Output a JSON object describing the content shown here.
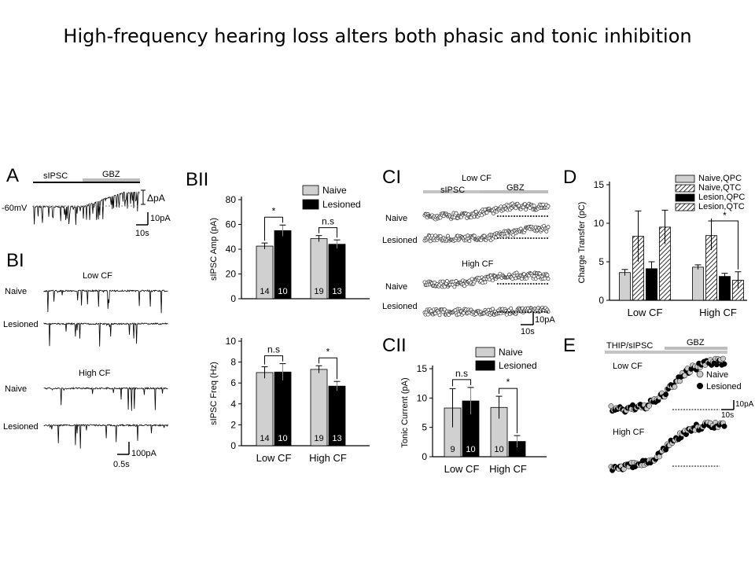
{
  "title": "High-frequency hearing loss alters both phasic and tonic inhibition",
  "panel_labels": {
    "A": "A",
    "BI": "BI",
    "BII": "BII",
    "CI": "CI",
    "CII": "CII",
    "D": "D",
    "E": "E"
  },
  "panel_A": {
    "sipsc": "sIPSC",
    "gbz": "GBZ",
    "vhold": "-60mV",
    "delta": "ΔpA",
    "scale_y": "10pA",
    "scale_x": "10s"
  },
  "panel_BI": {
    "low_cf": "Low CF",
    "high_cf": "High CF",
    "naive": "Naive",
    "lesioned": "Lesioned",
    "scale_y": "100pA",
    "scale_x": "0.5s"
  },
  "panel_CI": {
    "low_cf": "Low CF",
    "high_cf": "High CF",
    "sipsc": "sIPSC",
    "gbz": "GBZ",
    "naive": "Naive",
    "lesioned": "Lesioned",
    "scale_y": "10pA",
    "scale_x": "10s"
  },
  "panel_E": {
    "thip": "THIP/sIPSC",
    "gbz": "GBZ",
    "low_cf": "Low CF",
    "high_cf": "High CF",
    "naive": "Naive",
    "lesioned": "Lesioned",
    "scale_y": "10pA",
    "scale_x": "10s"
  },
  "colors": {
    "naive": "#d0d0d0",
    "lesioned": "#000000",
    "bar_gray": "#c8c8c8"
  },
  "chart_data": [
    {
      "id": "BII_amp",
      "type": "bar",
      "categories": [
        "Low CF",
        "High CF"
      ],
      "series": [
        {
          "name": "Naive",
          "values": [
            42.5,
            48.5
          ],
          "err": [
            2.5,
            2.5
          ],
          "n": [
            "14",
            "19"
          ]
        },
        {
          "name": "Lesioned",
          "values": [
            55,
            44
          ],
          "err": [
            4.5,
            3.5
          ],
          "n": [
            "10",
            "13"
          ]
        }
      ],
      "ylabel": "sIPSC Amp (pA)",
      "ylim": [
        0,
        80
      ],
      "yticks": [
        0,
        20,
        40,
        60,
        80
      ],
      "sig": [
        "*",
        "n.s"
      ],
      "legend": "top-right",
      "show_xlabels": false
    },
    {
      "id": "BII_freq",
      "type": "bar",
      "categories": [
        "Low CF",
        "High CF"
      ],
      "series": [
        {
          "name": "Naive",
          "values": [
            7.0,
            7.3
          ],
          "err": [
            0.55,
            0.35
          ],
          "n": [
            "14",
            "19"
          ]
        },
        {
          "name": "Lesioned",
          "values": [
            7.05,
            5.7
          ],
          "err": [
            0.8,
            0.45
          ],
          "n": [
            "10",
            "13"
          ]
        }
      ],
      "ylabel": "sIPSC Freq (Hz)",
      "ylim": [
        0,
        10
      ],
      "yticks": [
        0,
        2,
        4,
        6,
        8,
        10
      ],
      "sig": [
        "n.s",
        "*"
      ],
      "legend": "none",
      "show_xlabels": true
    },
    {
      "id": "CII",
      "type": "bar",
      "categories": [
        "Low CF",
        "High CF"
      ],
      "series": [
        {
          "name": "Naive",
          "values": [
            8.3,
            8.4
          ],
          "err": [
            3.3,
            1.9
          ],
          "n": [
            "9",
            "10"
          ]
        },
        {
          "name": "Lesioned",
          "values": [
            9.5,
            2.6
          ],
          "err": [
            2.3,
            1.0
          ],
          "n": [
            "10",
            ""
          ]
        }
      ],
      "ylabel": "Tonic Current (pA)",
      "ylim": [
        0,
        15
      ],
      "yticks": [
        0,
        5,
        10,
        15
      ],
      "sig": [
        "n.s",
        "*"
      ],
      "legend": "top-right",
      "show_xlabels": true
    },
    {
      "id": "D",
      "type": "bar",
      "categories": [
        "Low CF",
        "High CF"
      ],
      "series": [
        {
          "name": "Naive,QPC",
          "values": [
            3.6,
            4.3
          ],
          "err": [
            0.4,
            0.3
          ],
          "hatch": false,
          "fill": "#d0d0d0"
        },
        {
          "name": "Naive,QTC",
          "values": [
            8.3,
            8.4
          ],
          "err": [
            3.3,
            1.9
          ],
          "hatch": true,
          "fill": "#ffffff"
        },
        {
          "name": "Lesion,QPC",
          "values": [
            4.1,
            3.1
          ],
          "err": [
            0.9,
            0.4
          ],
          "hatch": false,
          "fill": "#000000"
        },
        {
          "name": "Lesion,QTC",
          "values": [
            9.5,
            2.6
          ],
          "err": [
            2.2,
            1.1
          ],
          "hatch": true,
          "fill": "#ffffff"
        }
      ],
      "ylabel": "Charge Transfer (pC)",
      "ylim": [
        0,
        15
      ],
      "yticks": [
        0,
        5,
        10,
        15
      ],
      "sig_high": "*",
      "legend": "top-right",
      "show_xlabels": true
    }
  ]
}
